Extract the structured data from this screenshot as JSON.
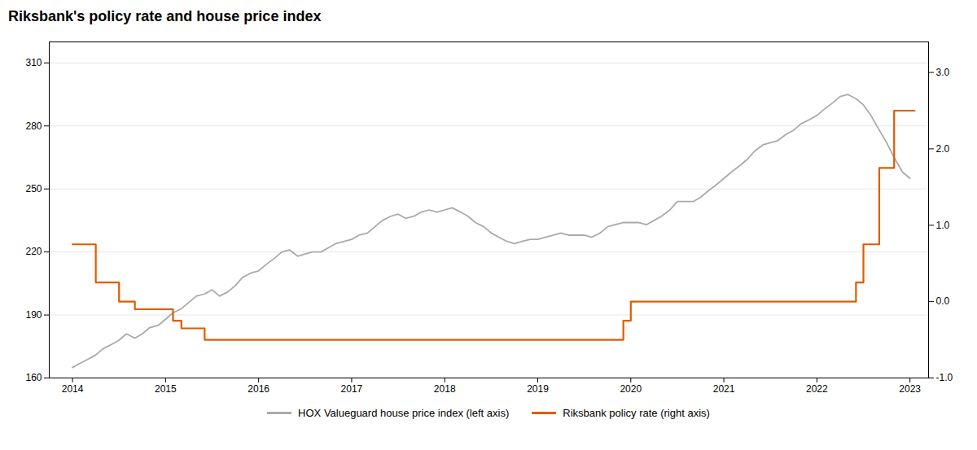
{
  "chart_data": {
    "type": "line",
    "title": "Riksbank's policy rate and house price index",
    "xlim": [
      2013.75,
      2023.2
    ],
    "xticks": [
      2014,
      2015,
      2016,
      2017,
      2018,
      2019,
      2020,
      2021,
      2022,
      2023
    ],
    "ylim": [
      160,
      320
    ],
    "yticks": [
      160,
      190,
      220,
      250,
      280,
      310
    ],
    "y2lim": [
      -1.0,
      3.4
    ],
    "y2ticks": [
      {
        "value": -1.0,
        "label": "-1.0"
      },
      {
        "value": 0.0,
        "label": "0.0"
      },
      {
        "value": 1.0,
        "label": "1.0"
      },
      {
        "value": 2.0,
        "label": "2.0"
      },
      {
        "value": 3.0,
        "label": "3.0"
      }
    ],
    "grid": true,
    "legend": "bottom",
    "series": [
      {
        "name": "HOX Valueguard house price index (left axis)",
        "color": "#aaaaaa",
        "axis": "y",
        "x": [
          2014.0,
          2014.08,
          2014.17,
          2014.25,
          2014.33,
          2014.42,
          2014.5,
          2014.58,
          2014.67,
          2014.75,
          2014.83,
          2014.92,
          2015.0,
          2015.08,
          2015.17,
          2015.25,
          2015.33,
          2015.42,
          2015.5,
          2015.58,
          2015.67,
          2015.75,
          2015.83,
          2015.92,
          2016.0,
          2016.08,
          2016.17,
          2016.25,
          2016.33,
          2016.42,
          2016.5,
          2016.58,
          2016.67,
          2016.75,
          2016.83,
          2016.92,
          2017.0,
          2017.08,
          2017.17,
          2017.25,
          2017.33,
          2017.42,
          2017.5,
          2017.58,
          2017.67,
          2017.75,
          2017.83,
          2017.92,
          2018.0,
          2018.08,
          2018.17,
          2018.25,
          2018.33,
          2018.42,
          2018.5,
          2018.58,
          2018.67,
          2018.75,
          2018.83,
          2018.92,
          2019.0,
          2019.08,
          2019.17,
          2019.25,
          2019.33,
          2019.42,
          2019.5,
          2019.58,
          2019.67,
          2019.75,
          2019.83,
          2019.92,
          2020.0,
          2020.08,
          2020.17,
          2020.25,
          2020.33,
          2020.42,
          2020.5,
          2020.58,
          2020.67,
          2020.75,
          2020.83,
          2020.92,
          2021.0,
          2021.08,
          2021.17,
          2021.25,
          2021.33,
          2021.42,
          2021.5,
          2021.58,
          2021.67,
          2021.75,
          2021.83,
          2021.92,
          2022.0,
          2022.08,
          2022.17,
          2022.25,
          2022.33,
          2022.42,
          2022.5,
          2022.58,
          2022.67,
          2022.75,
          2022.83,
          2022.92,
          2023.0
        ],
        "values": [
          165,
          167,
          169,
          171,
          174,
          176,
          178,
          181,
          179,
          181,
          184,
          185,
          188,
          191,
          193,
          196,
          199,
          200,
          202,
          199,
          201,
          204,
          208,
          210,
          211,
          214,
          217,
          220,
          221,
          218,
          219,
          220,
          220,
          222,
          224,
          225,
          226,
          228,
          229,
          232,
          235,
          237,
          238,
          236,
          237,
          239,
          240,
          239,
          240,
          241,
          239,
          237,
          234,
          232,
          229,
          227,
          225,
          224,
          225,
          226,
          226,
          227,
          228,
          229,
          228,
          228,
          228,
          227,
          229,
          232,
          233,
          234,
          234,
          234,
          233,
          235,
          237,
          240,
          244,
          244,
          244,
          246,
          249,
          252,
          255,
          258,
          261,
          264,
          268,
          271,
          272,
          273,
          276,
          278,
          281,
          283,
          285,
          288,
          291,
          294,
          295,
          293,
          290,
          285,
          278,
          272,
          265,
          258,
          255
        ]
      },
      {
        "name": "Riksbank policy rate (right axis)",
        "color": "#e05c00",
        "axis": "y2",
        "x": [
          2014.0,
          2014.25,
          2014.25,
          2014.5,
          2014.5,
          2014.67,
          2014.67,
          2015.08,
          2015.08,
          2015.17,
          2015.17,
          2015.42,
          2015.42,
          2019.92,
          2019.92,
          2020.0,
          2020.0,
          2022.42,
          2022.42,
          2022.5,
          2022.5,
          2022.67,
          2022.67,
          2022.83,
          2022.83,
          2023.05
        ],
        "values": [
          0.75,
          0.75,
          0.25,
          0.25,
          0.0,
          0.0,
          -0.1,
          -0.1,
          -0.25,
          -0.25,
          -0.35,
          -0.35,
          -0.5,
          -0.5,
          -0.25,
          -0.25,
          0.0,
          0.0,
          0.25,
          0.25,
          0.75,
          0.75,
          1.75,
          1.75,
          2.5,
          2.5
        ]
      }
    ]
  }
}
